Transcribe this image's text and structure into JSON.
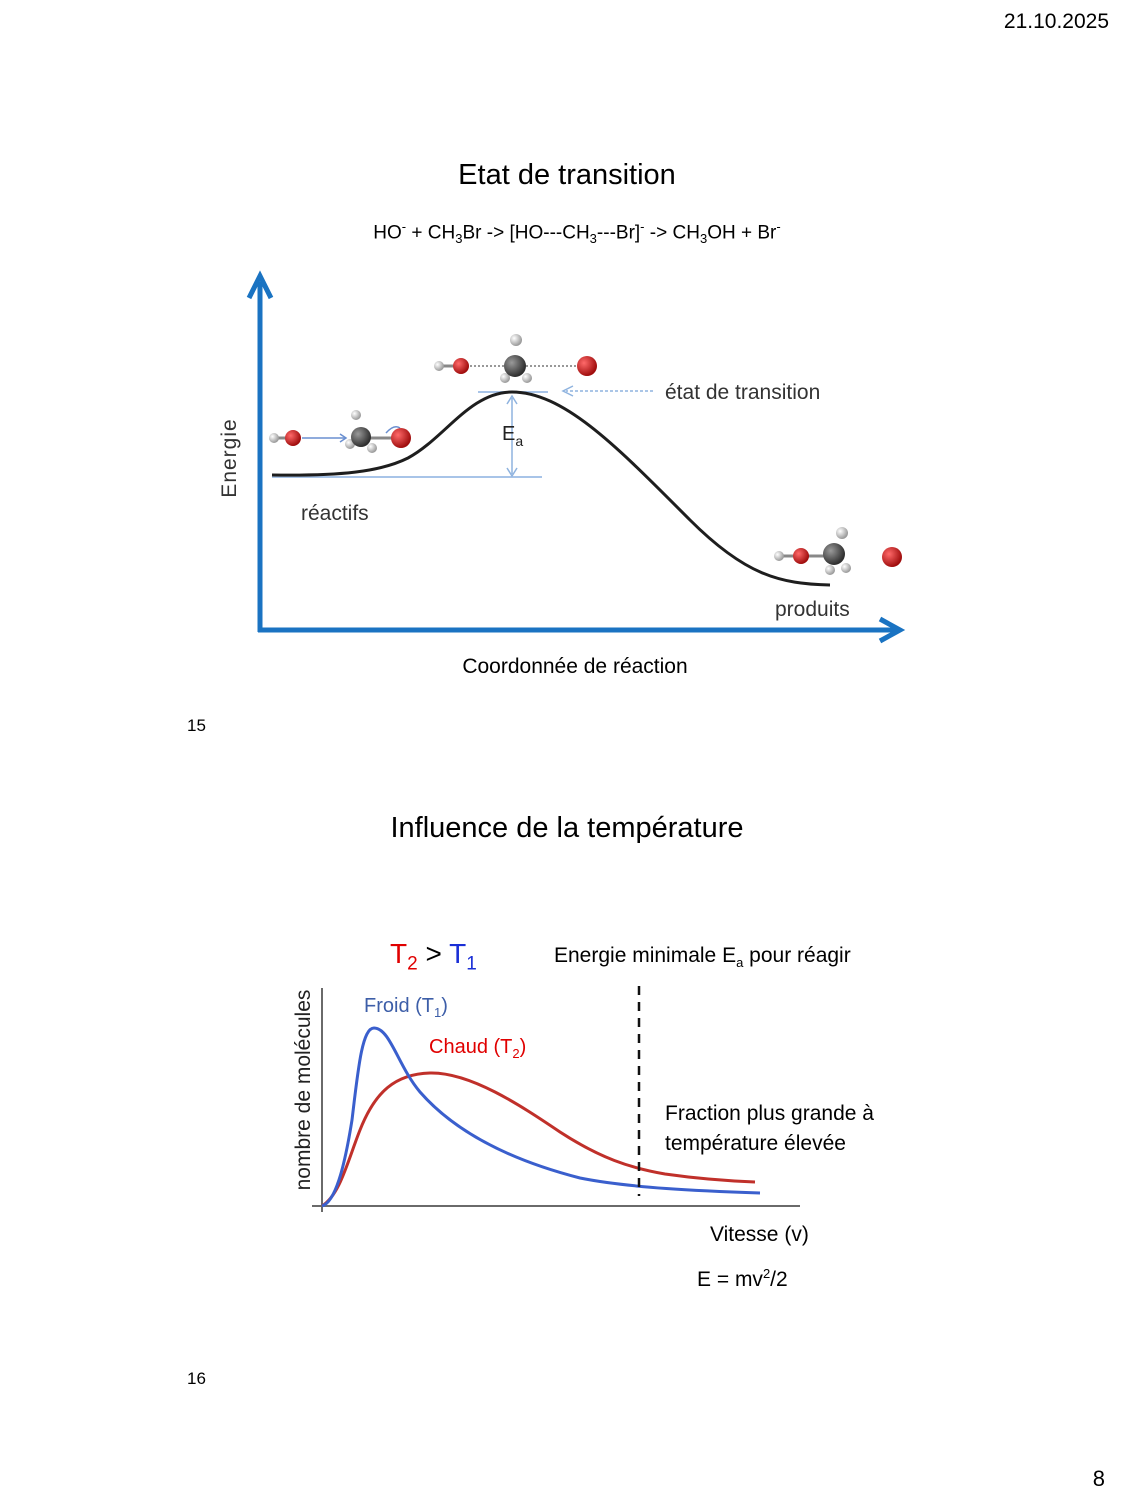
{
  "header": {
    "date": "21.10.2025"
  },
  "slide15": {
    "title": "Etat de transition",
    "equation": {
      "p1": "HO",
      "s1": "-",
      "p2": " + CH",
      "s2": "3",
      "p3": "Br -> [HO---CH",
      "s3": "3",
      "p4": "---Br]",
      "s4": "-",
      "p5": " -> CH",
      "s5": "3",
      "p6": "OH + Br",
      "s6": "-"
    },
    "y_axis_label": "Energie",
    "x_axis_label": "Coordonnée de réaction",
    "label_reactants": "réactifs",
    "label_products": "produits",
    "label_transition": "état de transition",
    "label_ea": "E",
    "label_ea_sub": "a",
    "page_number": "15",
    "colors": {
      "axis": "#1a73c2",
      "curve": "#1e1e1e",
      "oxygen": "#c81818",
      "carbon": "#555555",
      "hydrogen": "#d8d8d8"
    }
  },
  "slide16": {
    "title": "Influence de la température",
    "legend": {
      "t2": "T",
      "t2_sub": "2",
      "gt": " > ",
      "t1": "T",
      "t1_sub": "1"
    },
    "energy_label": "Energie minimale E",
    "energy_label_sub": "a",
    "energy_label_end": " pour réagir",
    "cold_label": "Froid (T",
    "cold_sub": "1",
    "cold_end": ")",
    "hot_label": "Chaud (T",
    "hot_sub": "2",
    "hot_end": ")",
    "fraction_line1": "Fraction plus grande à",
    "fraction_line2": "température élevée",
    "y_axis_label": "nombre de molécules",
    "x_axis_label": "Vitesse (v)",
    "formula": "E = mv",
    "formula_sup": "2",
    "formula_end": "/2",
    "page_number": "16",
    "colors": {
      "cold": "#3a5fcd",
      "hot": "#c0302a",
      "red_text": "#e00000",
      "blue_text": "#1a2fd6"
    }
  },
  "footer": {
    "page": "8"
  }
}
